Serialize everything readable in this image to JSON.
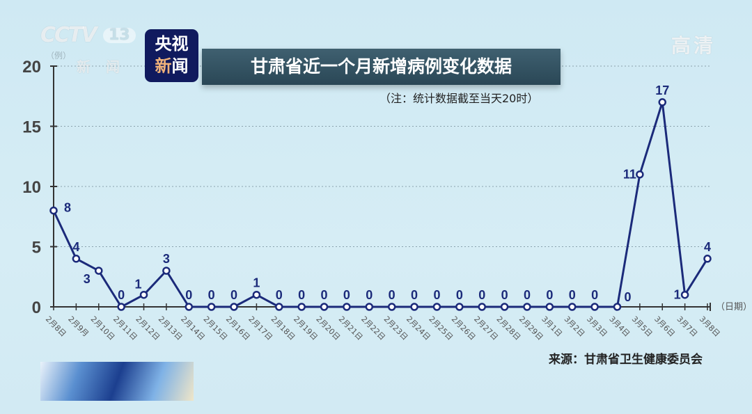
{
  "watermark": {
    "channel": "CCTV",
    "channel_num": "13",
    "channel_sub": "新闻",
    "quality": "高清"
  },
  "logo": {
    "line1": "央视",
    "line2a": "新",
    "line2b": "闻"
  },
  "chart_data": {
    "type": "line",
    "title": "甘肃省近一个月新增病例变化数据",
    "note": "（注：统计数据截至当天20时）",
    "source": "来源：甘肃省卫生健康委员会",
    "ylabel": "（例）",
    "xlabel": "（日期）",
    "ylim": [
      0,
      20
    ],
    "yticks": [
      0,
      5,
      10,
      15,
      20
    ],
    "grid": "horizontal dotted",
    "line_color": "#1b2a7a",
    "categories": [
      "2月8日",
      "2月9月",
      "2月10日",
      "2月11日",
      "2月12日",
      "2月13日",
      "2月14日",
      "2月15日",
      "2月16日",
      "2月17日",
      "2月18日",
      "2月19日",
      "2月20日",
      "2月21日",
      "2月22日",
      "2月23日",
      "2月24日",
      "2月25日",
      "2月26日",
      "2月27日",
      "2月28日",
      "2月29日",
      "3月1日",
      "3月2日",
      "3月3日",
      "3月4日",
      "3月5日",
      "3月6日",
      "3月7日",
      "3月8日"
    ],
    "values": [
      8,
      4,
      3,
      0,
      1,
      3,
      0,
      0,
      0,
      1,
      0,
      0,
      0,
      0,
      0,
      0,
      0,
      0,
      0,
      0,
      0,
      0,
      0,
      0,
      0,
      0,
      11,
      17,
      1,
      4
    ]
  }
}
